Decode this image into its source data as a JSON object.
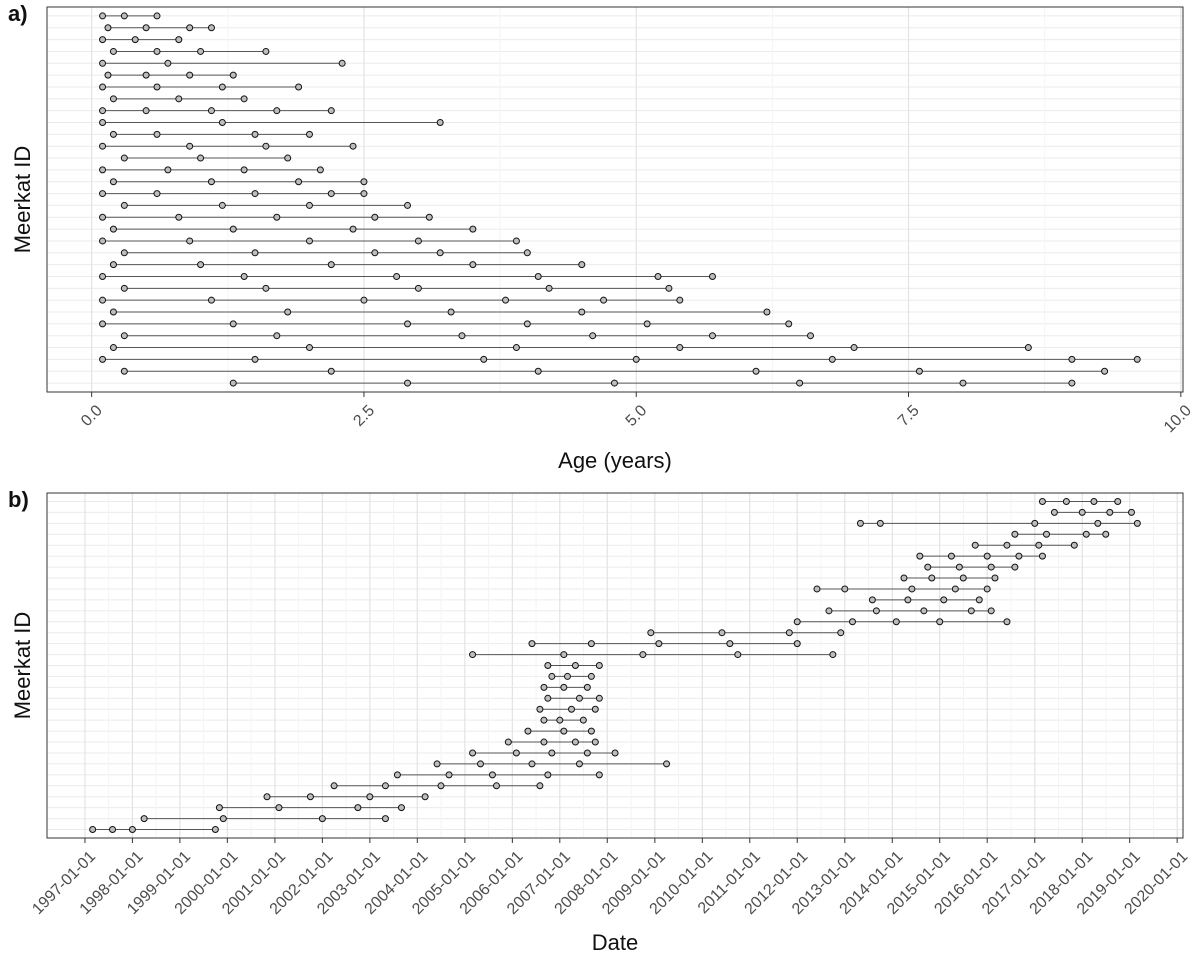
{
  "chart_data": [
    {
      "type": "dot-line",
      "panel_label": "a)",
      "xlabel": "Age (years)",
      "ylabel": "Meerkat ID",
      "grid": true,
      "color": "#bdbdbd",
      "xlim": [
        -0.41,
        10.02
      ],
      "xticks": [
        {
          "value": 0,
          "label": "0.0"
        },
        {
          "value": 2.5,
          "label": "2.5"
        },
        {
          "value": 5,
          "label": "5.0"
        },
        {
          "value": 7.5,
          "label": "7.5"
        },
        {
          "value": 10,
          "label": "10.0"
        }
      ],
      "rows": [
        [
          0.1,
          0.3,
          0.6
        ],
        [
          0.15,
          0.5,
          0.9,
          1.1
        ],
        [
          0.1,
          0.4,
          0.8
        ],
        [
          0.2,
          0.6,
          1.0,
          1.6
        ],
        [
          0.1,
          0.7,
          2.3
        ],
        [
          0.15,
          0.5,
          0.9,
          1.3
        ],
        [
          0.1,
          0.6,
          1.2,
          1.9
        ],
        [
          0.2,
          0.8,
          1.4
        ],
        [
          0.1,
          0.5,
          1.1,
          1.7,
          2.2
        ],
        [
          0.1,
          1.2,
          3.2
        ],
        [
          0.2,
          0.6,
          1.5,
          2.0
        ],
        [
          0.1,
          0.9,
          1.6,
          2.4
        ],
        [
          0.3,
          1.0,
          1.8
        ],
        [
          0.1,
          0.7,
          1.4,
          2.1
        ],
        [
          0.2,
          1.1,
          1.9,
          2.5
        ],
        [
          0.1,
          0.6,
          1.5,
          2.2,
          2.5
        ],
        [
          0.3,
          1.2,
          2.0,
          2.9
        ],
        [
          0.1,
          0.8,
          1.7,
          2.6,
          3.1
        ],
        [
          0.2,
          1.3,
          2.4,
          3.5
        ],
        [
          0.1,
          0.9,
          2.0,
          3.0,
          3.9
        ],
        [
          0.3,
          1.5,
          2.6,
          3.2,
          4.0
        ],
        [
          0.2,
          1.0,
          2.2,
          3.5,
          4.5
        ],
        [
          0.1,
          1.4,
          2.8,
          4.1,
          5.2,
          5.7
        ],
        [
          0.3,
          1.6,
          3.0,
          4.2,
          5.3
        ],
        [
          0.1,
          1.1,
          2.5,
          3.8,
          4.7,
          5.4
        ],
        [
          0.2,
          1.8,
          3.3,
          4.5,
          6.2
        ],
        [
          0.1,
          1.3,
          2.9,
          4.0,
          5.1,
          6.4
        ],
        [
          0.3,
          1.7,
          3.4,
          4.6,
          5.7,
          6.6
        ],
        [
          0.2,
          2.0,
          3.9,
          5.4,
          7.0,
          8.6
        ],
        [
          0.1,
          1.5,
          3.6,
          5.0,
          6.8,
          9.0,
          9.6
        ],
        [
          0.3,
          2.2,
          4.1,
          6.1,
          7.6,
          9.3
        ],
        [
          1.3,
          2.9,
          4.8,
          6.5,
          8.0,
          9.0
        ]
      ]
    },
    {
      "type": "dot-line",
      "panel_label": "b)",
      "xlabel": "Date",
      "ylabel": "Meerkat ID",
      "grid": true,
      "color": "#bdbdbd",
      "xlim": [
        "1996-03-15",
        "2020-02-15"
      ],
      "xticks": [
        "1997-01-01",
        "1998-01-01",
        "1999-01-01",
        "2000-01-01",
        "2001-01-01",
        "2002-01-01",
        "2003-01-01",
        "2004-01-01",
        "2005-01-01",
        "2006-01-01",
        "2007-01-01",
        "2008-01-01",
        "2009-01-01",
        "2010-01-01",
        "2011-01-01",
        "2012-01-01",
        "2013-01-01",
        "2014-01-01",
        "2015-01-01",
        "2016-01-01",
        "2017-01-01",
        "2018-01-01",
        "2019-01-01",
        "2020-01-01"
      ],
      "rows": [
        [
          "2017-03-01",
          "2017-09-01",
          "2018-04-01",
          "2018-10-01"
        ],
        [
          "2017-06-01",
          "2018-01-01",
          "2018-08-01",
          "2019-01-15"
        ],
        [
          "2013-05-01",
          "2013-10-01",
          "2017-01-01",
          "2018-05-01",
          "2019-03-01"
        ],
        [
          "2016-08-01",
          "2017-04-01",
          "2018-02-01",
          "2018-07-01"
        ],
        [
          "2015-10-01",
          "2016-06-01",
          "2017-02-01",
          "2017-11-01"
        ],
        [
          "2014-08-01",
          "2015-04-01",
          "2016-01-01",
          "2016-09-01",
          "2017-03-01"
        ],
        [
          "2014-10-01",
          "2015-06-01",
          "2016-02-01",
          "2016-08-01"
        ],
        [
          "2014-04-01",
          "2014-11-01",
          "2015-07-01",
          "2016-03-01"
        ],
        [
          "2012-06-01",
          "2013-01-01",
          "2014-06-01",
          "2015-05-01",
          "2016-01-01"
        ],
        [
          "2013-08-01",
          "2014-05-01",
          "2015-02-01",
          "2015-11-01"
        ],
        [
          "2012-09-01",
          "2013-09-01",
          "2014-09-01",
          "2015-09-01",
          "2016-02-01"
        ],
        [
          "2012-01-01",
          "2013-03-01",
          "2014-02-01",
          "2015-01-01",
          "2016-06-01"
        ],
        [
          "2008-12-01",
          "2010-06-01",
          "2011-11-01",
          "2012-12-01"
        ],
        [
          "2006-06-01",
          "2007-09-01",
          "2009-02-01",
          "2010-08-01",
          "2012-01-01"
        ],
        [
          "2005-03-01",
          "2007-02-01",
          "2008-10-01",
          "2010-10-01",
          "2012-10-01"
        ],
        [
          "2006-10-01",
          "2007-05-01",
          "2007-11-01"
        ],
        [
          "2006-11-01",
          "2007-03-01",
          "2007-09-01"
        ],
        [
          "2006-09-01",
          "2007-02-01",
          "2007-08-01"
        ],
        [
          "2006-10-01",
          "2007-06-01",
          "2007-11-01"
        ],
        [
          "2006-08-01",
          "2007-04-01",
          "2007-10-01"
        ],
        [
          "2006-09-01",
          "2007-01-01",
          "2007-07-01"
        ],
        [
          "2006-05-01",
          "2007-02-01",
          "2007-09-01"
        ],
        [
          "2005-12-01",
          "2006-09-01",
          "2007-05-01",
          "2007-10-01"
        ],
        [
          "2005-03-01",
          "2006-02-01",
          "2006-11-01",
          "2007-08-01",
          "2008-03-01"
        ],
        [
          "2004-06-01",
          "2005-05-01",
          "2006-06-01",
          "2007-06-01",
          "2009-04-01"
        ],
        [
          "2003-08-01",
          "2004-09-01",
          "2005-08-01",
          "2006-10-01",
          "2007-11-01"
        ],
        [
          "2002-04-01",
          "2003-05-01",
          "2004-07-01",
          "2005-09-01",
          "2006-08-01"
        ],
        [
          "2000-11-01",
          "2001-10-01",
          "2003-01-01",
          "2004-03-01"
        ],
        [
          "1999-11-01",
          "2001-02-01",
          "2002-10-01",
          "2003-09-01"
        ],
        [
          "1998-04-01",
          "1999-12-01",
          "2002-01-01",
          "2003-05-01"
        ],
        [
          "1997-03-01",
          "1997-08-01",
          "1998-01-01",
          "1999-10-01"
        ]
      ]
    }
  ]
}
